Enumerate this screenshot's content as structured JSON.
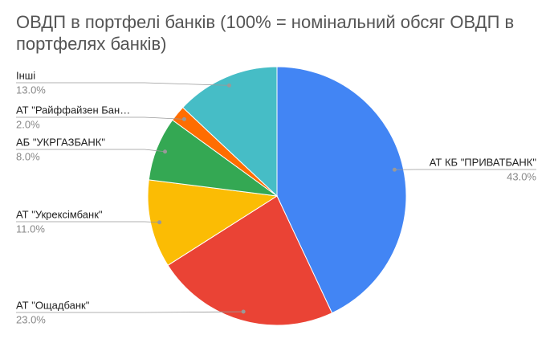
{
  "chart_data": {
    "type": "pie",
    "title": "ОВДП в портфелі банків (100% = номінальний обсяг ОВДП в портфелях банків)",
    "categories": [
      "АТ КБ \"ПРИВАТБАНК\"",
      "АТ \"Ощадбанк\"",
      "АТ \"Укрексімбанк\"",
      "АБ \"УКРГАЗБАНК\"",
      "АТ \"Райффайзен Бан…",
      "Інші"
    ],
    "values": [
      43,
      23,
      11,
      8,
      2,
      13
    ],
    "value_labels": [
      "43.0%",
      "23.0%",
      "11.0%",
      "8.0%",
      "2.0%",
      "13.0%"
    ],
    "colors": [
      "#4285f4",
      "#ea4335",
      "#fbbc04",
      "#34a853",
      "#ff6d01",
      "#46bdc6"
    ]
  }
}
